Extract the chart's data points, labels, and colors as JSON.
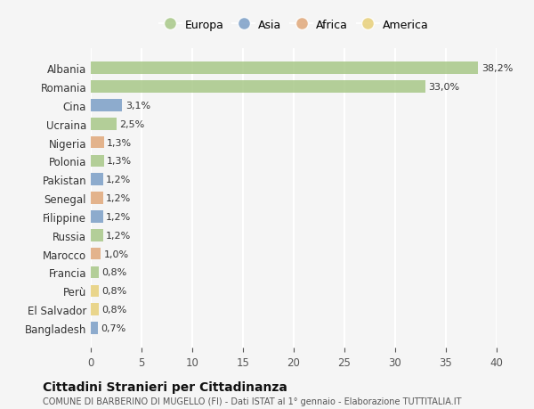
{
  "countries": [
    "Albania",
    "Romania",
    "Cina",
    "Ucraina",
    "Nigeria",
    "Polonia",
    "Pakistan",
    "Senegal",
    "Filippine",
    "Russia",
    "Marocco",
    "Francia",
    "Perù",
    "El Salvador",
    "Bangladesh"
  ],
  "values": [
    38.2,
    33.0,
    3.1,
    2.5,
    1.3,
    1.3,
    1.2,
    1.2,
    1.2,
    1.2,
    1.0,
    0.8,
    0.8,
    0.8,
    0.7
  ],
  "labels": [
    "38,2%",
    "33,0%",
    "3,1%",
    "2,5%",
    "1,3%",
    "1,3%",
    "1,2%",
    "1,2%",
    "1,2%",
    "1,2%",
    "1,0%",
    "0,8%",
    "0,8%",
    "0,8%",
    "0,7%"
  ],
  "continents": [
    "Europa",
    "Europa",
    "Asia",
    "Europa",
    "Africa",
    "Europa",
    "Asia",
    "Africa",
    "Asia",
    "Europa",
    "Africa",
    "Europa",
    "America",
    "America",
    "Asia"
  ],
  "continent_colors": {
    "Europa": "#a8c888",
    "Asia": "#7b9ec7",
    "Africa": "#e0a87a",
    "America": "#e8d07a"
  },
  "legend_order": [
    "Europa",
    "Asia",
    "Africa",
    "America"
  ],
  "title": "Cittadini Stranieri per Cittadinanza",
  "subtitle": "COMUNE DI BARBERINO DI MUGELLO (FI) - Dati ISTAT al 1° gennaio - Elaborazione TUTTITALIA.IT",
  "xlim": [
    0,
    40
  ],
  "xticks": [
    0,
    5,
    10,
    15,
    20,
    25,
    30,
    35,
    40
  ],
  "background_color": "#f5f5f5",
  "grid_color": "#ffffff",
  "bar_height": 0.65
}
